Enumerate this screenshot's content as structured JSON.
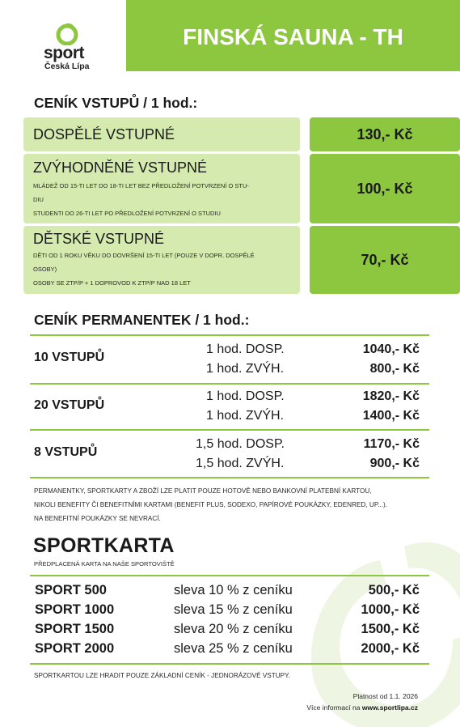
{
  "brand": {
    "logo_word": "sport",
    "logo_city": "Česká Lípa",
    "accent": "#8dc63f",
    "light_accent": "#d4eaaf"
  },
  "header": {
    "title": "FINSKÁ SAUNA - TH"
  },
  "entry": {
    "title": "CENÍK VSTUPŮ / 1 hod.:",
    "rows": [
      {
        "name": "DOSPĚLÉ VSTUPNÉ",
        "notes": [],
        "price": "130,- Kč"
      },
      {
        "name": "ZVÝHODNĚNÉ VSTUPNÉ",
        "notes": [
          "MLÁDEŽ OD 15-TI LET DO 18-TI LET BEZ PŘEDLOŽENÍ POTVRZENÍ O STU-",
          "DIU",
          "STUDENTI DO 26-TI LET PO PŘEDLOŽENÍ POTVRZENÍ O STUDIU"
        ],
        "price": "100,- Kč"
      },
      {
        "name": "DĚTSKÉ VSTUPNÉ",
        "notes": [
          "DĚTI OD 1 ROKU VĚKU DO DOVRŠENÍ 15-TI LET (POUZE V DOPR. DOSPĚLÉ",
          "OSOBY)",
          "OSOBY SE ZTP/P + 1 DOPROVOD K ZTP/P NAD 18 LET"
        ],
        "price": "70,- Kč"
      }
    ]
  },
  "passes": {
    "title": "CENÍK PERMANENTEK / 1 hod.:",
    "groups": [
      {
        "label": "10 VSTUPŮ",
        "lines": [
          {
            "desc": "1 hod. DOSP.",
            "price": "1040,- Kč"
          },
          {
            "desc": "1 hod. ZVÝH.",
            "price": "800,- Kč"
          }
        ]
      },
      {
        "label": "20 VSTUPŮ",
        "lines": [
          {
            "desc": "1 hod. DOSP.",
            "price": "1820,- Kč"
          },
          {
            "desc": "1 hod. ZVÝH.",
            "price": "1400,- Kč"
          }
        ]
      },
      {
        "label": "8 VSTUPŮ",
        "lines": [
          {
            "desc": "1,5 hod. DOSP.",
            "price": "1170,- Kč"
          },
          {
            "desc": "1,5 hod. ZVÝH.",
            "price": "900,- Kč"
          }
        ]
      }
    ],
    "note": [
      "PERMANENTKY, SPORTKARTY A ZBOŽÍ LZE PLATIT POUZE HOTOVĚ NEBO BANKOVNÍ PLATEBNÍ KARTOU,",
      "NIKOLI BENEFITY ČI BENEFITNÍMI KARTAMI (BENEFIT PLUS, SODEXO, PAPÍROVÉ POUKÁZKY, EDENRED, UP...).",
      "NA BENEFITNÍ POUKÁZKY SE NEVRACÍ."
    ]
  },
  "sportkarta": {
    "title": "SPORTKARTA",
    "subtitle": "PŘEDPLACENÁ KARTA NA NAŠE SPORTOVIŠTĚ",
    "rows": [
      {
        "name": "SPORT 500",
        "desc": "sleva 10 % z ceníku",
        "price": "500,- Kč"
      },
      {
        "name": "SPORT 1000",
        "desc": "sleva 15 % z ceníku",
        "price": "1000,- Kč"
      },
      {
        "name": "SPORT 1500",
        "desc": "sleva 20 % z ceníku",
        "price": "1500,- Kč"
      },
      {
        "name": "SPORT 2000",
        "desc": "sleva 25 % z ceníku",
        "price": "2000,- Kč"
      }
    ],
    "note": "SPORTKARTOU LZE HRADIT POUZE ZÁKLADNÍ CENÍK - JEDNORÁZOVÉ VSTUPY."
  },
  "footer": {
    "valid": "Platnost od 1.1. 2026",
    "info_prefix": "Více informací na",
    "url": "www.sportlipa.cz"
  }
}
